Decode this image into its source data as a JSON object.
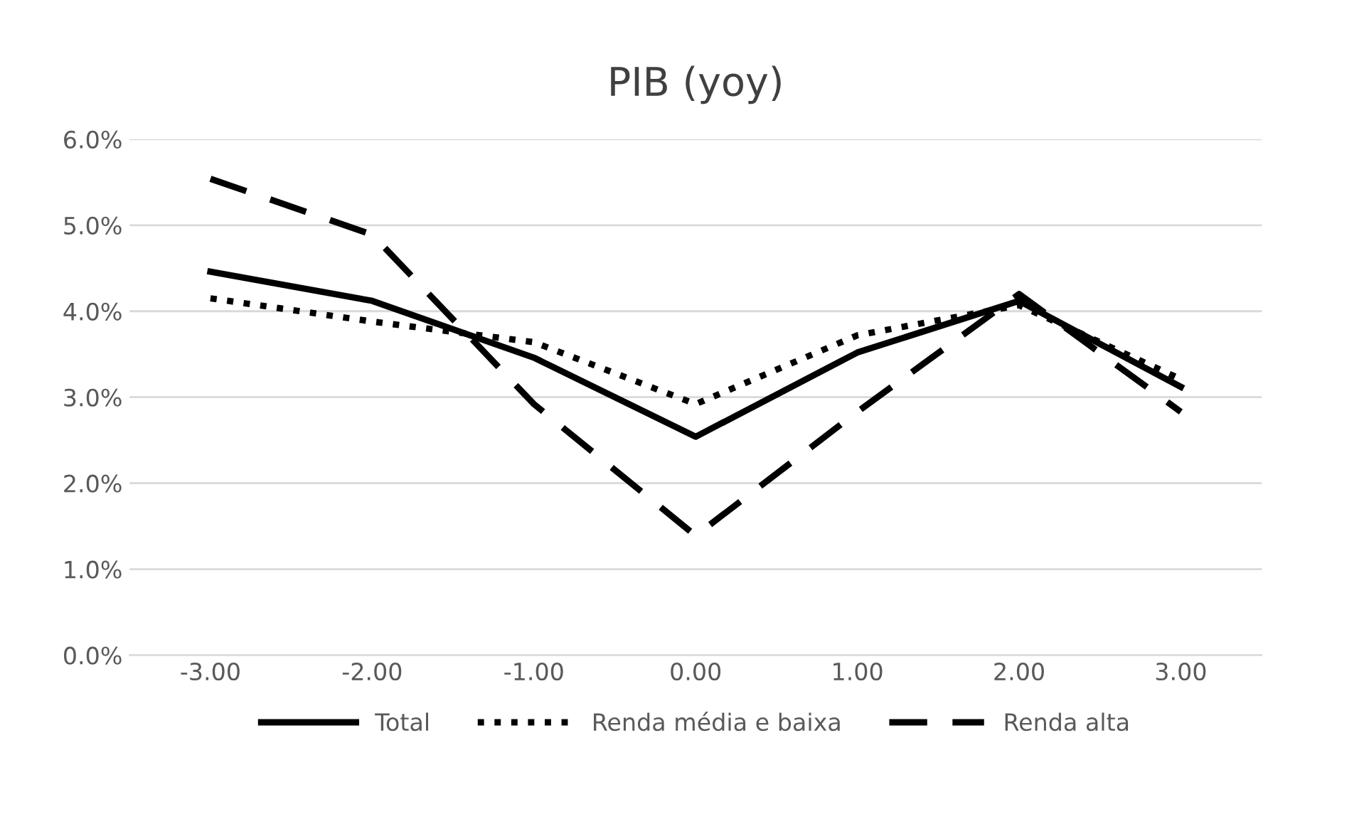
{
  "chart_data": {
    "type": "line",
    "title": "PIB (yoy)",
    "categories": [
      "-3.00",
      "-2.00",
      "-1.00",
      "0.00",
      "1.00",
      "2.00",
      "3.00"
    ],
    "series": [
      {
        "name": "Total",
        "color": "#000000",
        "line_style": "solid",
        "values": [
          4.46,
          4.12,
          3.46,
          2.54,
          3.52,
          4.12,
          3.12
        ]
      },
      {
        "name": "Renda média e baixa",
        "color": "#000000",
        "line_style": "dotted",
        "values": [
          4.15,
          3.88,
          3.64,
          2.92,
          3.72,
          4.07,
          3.21
        ]
      },
      {
        "name": "Renda alta",
        "color": "#000000",
        "line_style": "dashed",
        "values": [
          5.54,
          4.89,
          2.92,
          1.39,
          2.83,
          4.2,
          2.83
        ]
      }
    ],
    "ylim": [
      0,
      6
    ],
    "yticks": [
      {
        "value": 0,
        "label": "0.0%"
      },
      {
        "value": 1,
        "label": "1.0%"
      },
      {
        "value": 2,
        "label": "2.0%"
      },
      {
        "value": 3,
        "label": "3.0%"
      },
      {
        "value": 4,
        "label": "4.0%"
      },
      {
        "value": 5,
        "label": "5.0%"
      },
      {
        "value": 6,
        "label": "6.0%"
      }
    ],
    "grid": "y",
    "legend": "bottom",
    "marker": "none"
  }
}
